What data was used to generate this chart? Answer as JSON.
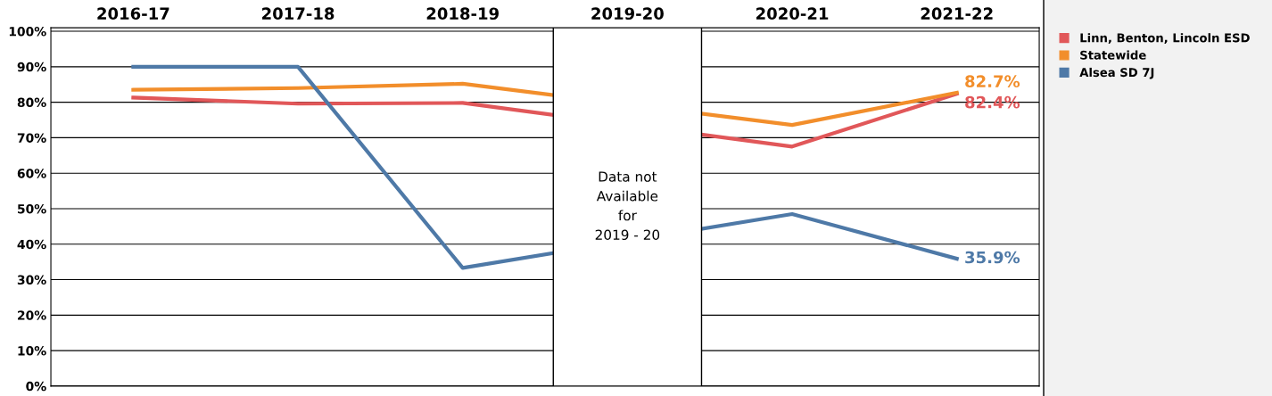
{
  "chart_data": {
    "type": "line",
    "categories": [
      "2016-17",
      "2017-18",
      "2018-19",
      "2019-20",
      "2020-21",
      "2021-22"
    ],
    "series": [
      {
        "name": "Linn, Benton, Lincoln ESD",
        "color": "#e15759",
        "values": [
          81.3,
          79.6,
          79.8,
          null,
          67.5,
          82.4
        ],
        "value_labels": [
          null,
          null,
          null,
          null,
          null,
          "82.4%"
        ]
      },
      {
        "name": "Statewide",
        "color": "#f28e2b",
        "values": [
          83.5,
          84.0,
          85.2,
          null,
          73.6,
          82.7
        ],
        "value_labels": [
          null,
          null,
          null,
          null,
          null,
          "82.7%"
        ]
      },
      {
        "name": "Alsea SD 7J",
        "color": "#4e79a7",
        "values": [
          90.0,
          90.0,
          33.3,
          null,
          48.5,
          35.9
        ],
        "value_labels": [
          null,
          null,
          null,
          null,
          null,
          "35.9%"
        ]
      }
    ],
    "ylim": [
      0,
      101
    ],
    "yticks": [
      {
        "value": 0,
        "label": "0%"
      },
      {
        "value": 10,
        "label": "10%"
      },
      {
        "value": 20,
        "label": "20%"
      },
      {
        "value": 30,
        "label": "30%"
      },
      {
        "value": 40,
        "label": "40%"
      },
      {
        "value": 50,
        "label": "50%"
      },
      {
        "value": 60,
        "label": "60%"
      },
      {
        "value": 70,
        "label": "70%"
      },
      {
        "value": 80,
        "label": "80%"
      },
      {
        "value": 90,
        "label": "90%"
      },
      {
        "value": 100,
        "label": "100%"
      }
    ],
    "bands": [
      {
        "axis": "x",
        "from": "2019-20",
        "to": "2019-20",
        "label": "Data not\nAvailable\nfor\n2019 - 20",
        "color": "#ffffff"
      }
    ],
    "grid": "y",
    "legend": "top right",
    "marker": "none",
    "line_style": "solid"
  }
}
